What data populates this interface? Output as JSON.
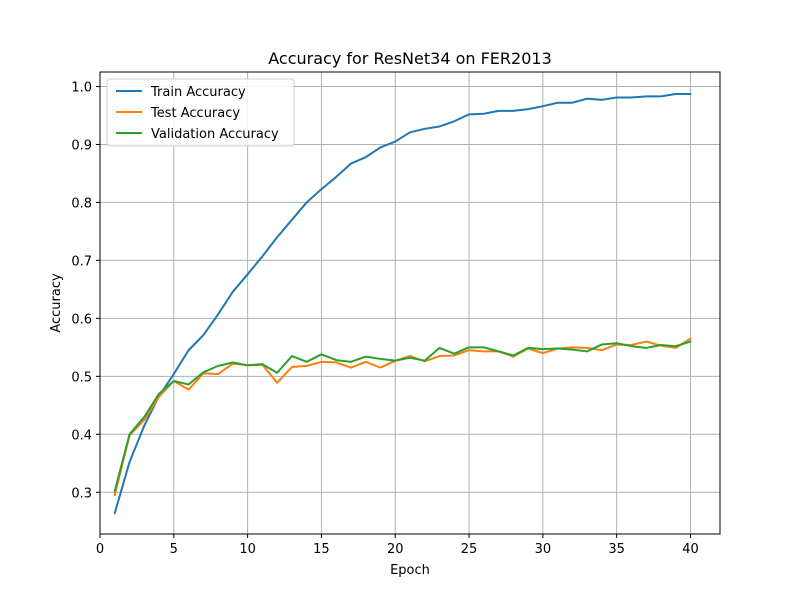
{
  "chart_data": {
    "type": "line",
    "title": "Accuracy for ResNet34 on FER2013",
    "xlabel": "Epoch",
    "ylabel": "Accuracy",
    "xlim": [
      0,
      42
    ],
    "ylim": [
      0.228,
      1.025
    ],
    "xticks": [
      0,
      5,
      10,
      15,
      20,
      25,
      30,
      35,
      40
    ],
    "yticks": [
      0.3,
      0.4,
      0.5,
      0.6,
      0.7,
      0.8,
      0.9,
      1.0
    ],
    "xtick_labels": [
      "0",
      "5",
      "10",
      "15",
      "20",
      "25",
      "30",
      "35",
      "40"
    ],
    "ytick_labels": [
      "0.3",
      "0.4",
      "0.5",
      "0.6",
      "0.7",
      "0.8",
      "0.9",
      "1.0"
    ],
    "grid": true,
    "legend_position": "top-left",
    "x": [
      1,
      2,
      3,
      4,
      5,
      6,
      7,
      8,
      9,
      10,
      11,
      12,
      13,
      14,
      15,
      16,
      17,
      18,
      19,
      20,
      21,
      22,
      23,
      24,
      25,
      26,
      27,
      28,
      29,
      30,
      31,
      32,
      33,
      34,
      35,
      36,
      37,
      38,
      39,
      40
    ],
    "series": [
      {
        "name": "Train Accuracy",
        "color": "#1f77b4",
        "values": [
          0.264,
          0.352,
          0.415,
          0.466,
          0.504,
          0.545,
          0.571,
          0.607,
          0.646,
          0.676,
          0.707,
          0.74,
          0.77,
          0.8,
          0.823,
          0.844,
          0.867,
          0.878,
          0.895,
          0.905,
          0.921,
          0.927,
          0.931,
          0.94,
          0.952,
          0.953,
          0.958,
          0.958,
          0.961,
          0.966,
          0.972,
          0.972,
          0.979,
          0.977,
          0.981,
          0.981,
          0.983,
          0.983,
          0.987,
          0.987
        ]
      },
      {
        "name": "Test Accuracy",
        "color": "#ff7f0e",
        "values": [
          0.295,
          0.398,
          0.425,
          0.465,
          0.492,
          0.477,
          0.505,
          0.504,
          0.522,
          0.519,
          0.52,
          0.489,
          0.516,
          0.518,
          0.525,
          0.524,
          0.515,
          0.525,
          0.515,
          0.527,
          0.535,
          0.526,
          0.535,
          0.536,
          0.545,
          0.543,
          0.543,
          0.534,
          0.548,
          0.54,
          0.548,
          0.55,
          0.549,
          0.545,
          0.555,
          0.554,
          0.56,
          0.553,
          0.549,
          0.565
        ]
      },
      {
        "name": "Validation Accuracy",
        "color": "#2ca02c",
        "values": [
          0.302,
          0.4,
          0.43,
          0.47,
          0.492,
          0.486,
          0.507,
          0.518,
          0.524,
          0.519,
          0.521,
          0.506,
          0.535,
          0.525,
          0.538,
          0.528,
          0.525,
          0.534,
          0.53,
          0.527,
          0.532,
          0.527,
          0.549,
          0.539,
          0.55,
          0.55,
          0.543,
          0.536,
          0.549,
          0.547,
          0.548,
          0.546,
          0.543,
          0.555,
          0.557,
          0.552,
          0.549,
          0.554,
          0.552,
          0.56
        ]
      }
    ]
  }
}
